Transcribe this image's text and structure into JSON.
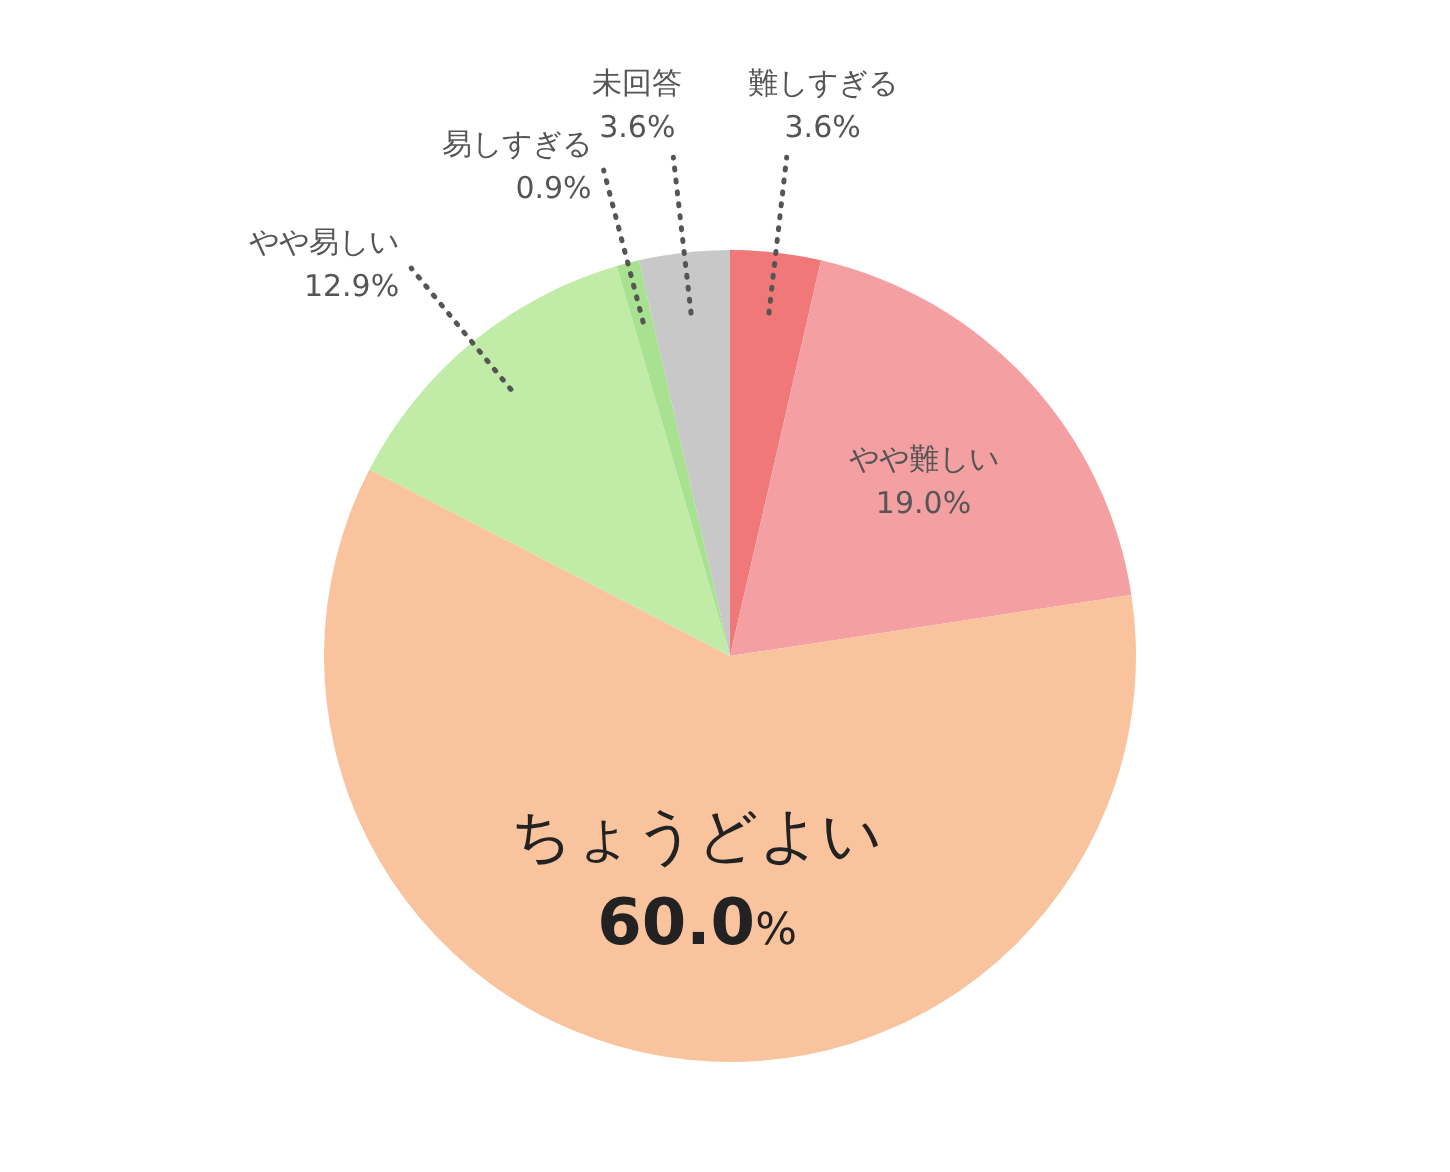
{
  "chart_data": {
    "type": "pie",
    "categories": [
      "難しすぎる",
      "やや難しい",
      "ちょうどよい",
      "やや易しい",
      "易しすぎる",
      "未回答"
    ],
    "values": [
      3.6,
      19.0,
      60.0,
      12.9,
      0.9,
      3.6
    ],
    "value_labels": [
      "3.6%",
      "19.0%",
      "60.0%",
      "12.9%",
      "0.9%",
      "3.6%"
    ],
    "colors": [
      "#f07878",
      "#f4a0a2",
      "#f9c39e",
      "#c0eca8",
      "#a8e290",
      "#c8c8c8"
    ]
  }
}
